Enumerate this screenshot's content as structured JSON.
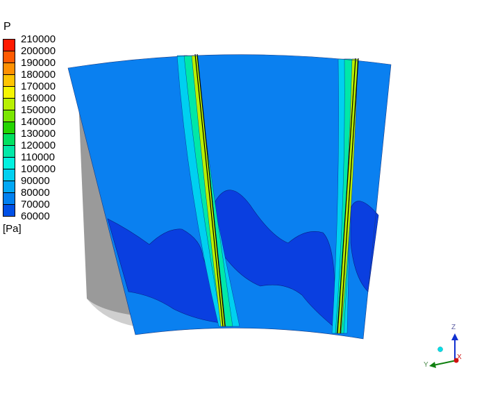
{
  "legend": {
    "title": "P",
    "unit": "[Pa]",
    "ticks": [
      "210000",
      "200000",
      "190000",
      "180000",
      "170000",
      "160000",
      "150000",
      "140000",
      "130000",
      "120000",
      "110000",
      "100000",
      "90000",
      "80000",
      "70000",
      "60000"
    ],
    "colors": [
      "#ff1a00",
      "#ff5a00",
      "#ff9000",
      "#ffc400",
      "#f5f500",
      "#b8f000",
      "#7ae600",
      "#24d400",
      "#00e060",
      "#00e8a8",
      "#00f0e0",
      "#00d0f0",
      "#00a8f5",
      "#0080f0",
      "#0050e6"
    ]
  },
  "field": {
    "base_color": "#0a80f0",
    "low_region_color": "#0a3fe0",
    "shadow_color": "#9a9a9a"
  },
  "axes": {
    "z_label": "Z",
    "y_label": "Y",
    "x_label": "X",
    "z_color": "#1030d0",
    "y_color": "#108010",
    "x_color": "#d01010"
  }
}
